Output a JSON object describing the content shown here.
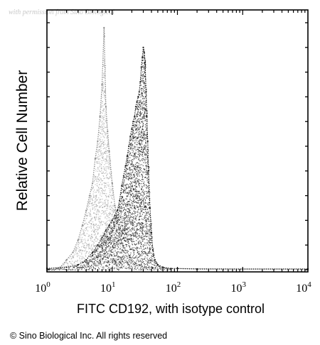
{
  "watermark": "with permission from Sino Biological",
  "copyright": "© Sino Biological Inc. All rights reserved",
  "chart_data": {
    "type": "area",
    "title": "",
    "xlabel": "FITC CD192, with isotype control",
    "ylabel": "Relative Cell Number",
    "x_scale": "log",
    "xlim": [
      1,
      10000
    ],
    "ylim": [
      0,
      100
    ],
    "x_ticks": [
      {
        "value": 1,
        "base": "10",
        "exp": "0"
      },
      {
        "value": 10,
        "base": "10",
        "exp": "1"
      },
      {
        "value": 100,
        "base": "10",
        "exp": "2"
      },
      {
        "value": 1000,
        "base": "10",
        "exp": "3"
      },
      {
        "value": 10000,
        "base": "10",
        "exp": "4"
      }
    ],
    "grid": false,
    "series": [
      {
        "style": "dotted-gray",
        "color": "#8a8a8a",
        "x": [
          1.0,
          1.6,
          2.0,
          2.5,
          3.0,
          3.5,
          4.0,
          4.5,
          5.0,
          5.5,
          6.0,
          6.5,
          7.0,
          7.5,
          8.0,
          8.5,
          9.0,
          10.0,
          11.0,
          12.0,
          13.0,
          14.0,
          15.0,
          17.0,
          19.0,
          22.0,
          26.0,
          32.0,
          40.0,
          60.0,
          100.0,
          1000.0,
          10000.0
        ],
        "y": [
          0.5,
          1,
          4,
          7,
          12,
          18,
          24,
          30,
          35,
          45,
          52,
          62,
          75,
          98,
          66,
          56,
          48,
          35,
          26,
          20,
          15,
          11,
          9,
          7,
          5,
          3,
          2,
          1,
          1,
          0.5,
          0.5,
          0.3,
          0.3
        ]
      },
      {
        "style": "dotted-black",
        "color": "#1a1a1a",
        "x": [
          1.0,
          2.0,
          3.0,
          4.0,
          5.0,
          6.0,
          7.0,
          8.0,
          9.0,
          10.0,
          11.0,
          12.0,
          13.0,
          14.0,
          15.0,
          16.0,
          17.0,
          18.0,
          19.0,
          20.0,
          21.0,
          22.0,
          23.0,
          24.0,
          25.0,
          26.0,
          27.0,
          28.0,
          29.0,
          30.0,
          31.0,
          32.0,
          33.0,
          34.0,
          35.0,
          36.0,
          38.0,
          40.0,
          42.0,
          45.0,
          50.0,
          60.0,
          80.0,
          100.0,
          200.0,
          1000.0,
          10000.0
        ],
        "y": [
          0.5,
          1,
          2,
          4,
          7,
          10,
          13,
          16,
          18,
          20,
          22,
          24,
          28,
          34,
          38,
          42,
          46,
          50,
          54,
          57,
          60,
          62,
          66,
          68,
          70,
          72,
          76,
          82,
          86,
          90,
          88,
          84,
          72,
          62,
          52,
          40,
          25,
          15,
          8,
          4,
          2,
          1,
          0.5,
          0.5,
          0.3,
          0.3,
          0.3
        ]
      }
    ]
  }
}
